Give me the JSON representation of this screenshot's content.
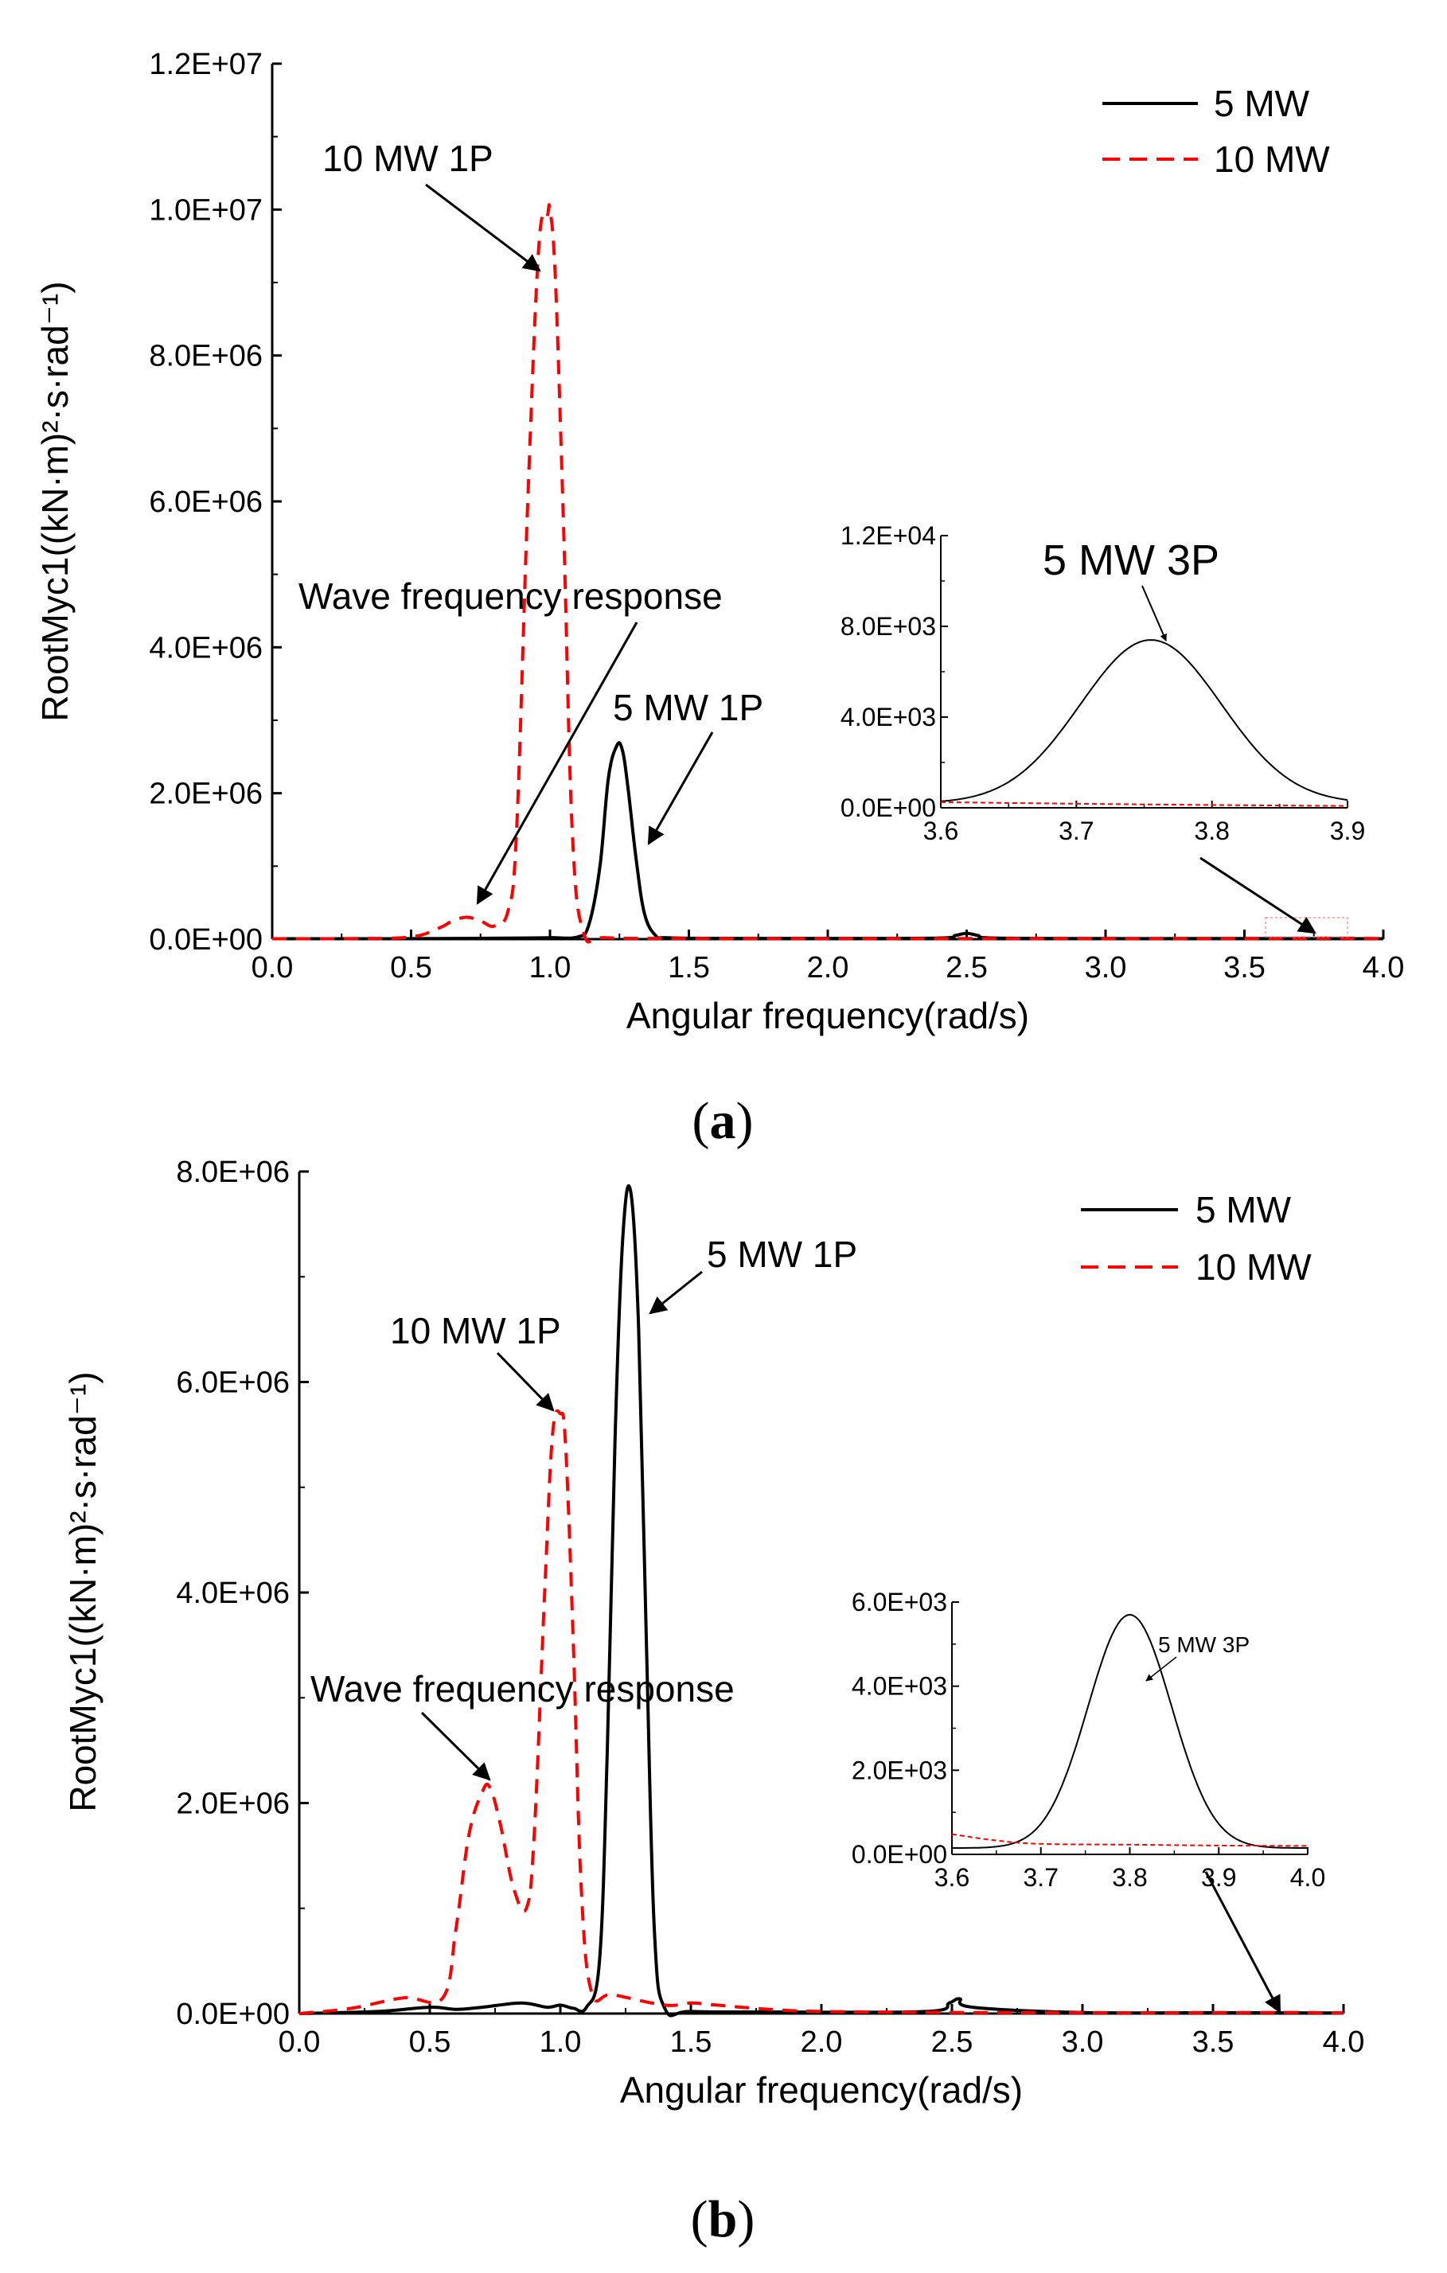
{
  "colors": {
    "mw5": "#000000",
    "mw10": "#ff0000"
  },
  "chart_data": [
    {
      "id": "a",
      "type": "line",
      "panel_label": "a",
      "xlabel": "Angular frequency(rad/s)",
      "ylabel": "RootMyc1((kN·m)²·s·rad⁻¹)",
      "xlim": [
        0,
        4
      ],
      "ylim": [
        0,
        12000000
      ],
      "x_ticks": [
        0,
        0.5,
        1,
        1.5,
        2,
        2.5,
        3,
        3.5,
        4
      ],
      "x_tick_labels": [
        "0.0",
        "0.5",
        "1.0",
        "1.5",
        "2.0",
        "2.5",
        "3.0",
        "3.5",
        "4.0"
      ],
      "y_ticks": [
        0,
        2000000,
        4000000,
        6000000,
        8000000,
        10000000,
        12000000
      ],
      "y_tick_labels": [
        "0.0E+00",
        "2.0E+06",
        "4.0E+06",
        "6.0E+06",
        "8.0E+06",
        "1.0E+07",
        "1.2E+07"
      ],
      "legend": {
        "position": "top-right",
        "entries": [
          "5 MW",
          "10 MW"
        ]
      },
      "series": [
        {
          "name": "5 MW",
          "style": "solid",
          "color": "#000000",
          "x": [
            0,
            0.3,
            0.6,
            0.9,
            1.0,
            1.1,
            1.14,
            1.18,
            1.21,
            1.24,
            1.26,
            1.28,
            1.31,
            1.34,
            1.38,
            1.42,
            1.6,
            2.0,
            2.4,
            2.46,
            2.5,
            2.54,
            2.6,
            3.0,
            3.5,
            4.0
          ],
          "y": [
            5000,
            5000,
            8000,
            15000,
            20000,
            30000,
            200000,
            1000000,
            2200000,
            2650000,
            2600000,
            2100000,
            1100000,
            350000,
            50000,
            20000,
            10000,
            10000,
            15000,
            50000,
            80000,
            50000,
            15000,
            8000,
            8000,
            5000
          ]
        },
        {
          "name": "10 MW",
          "style": "dashed",
          "color": "#ff0000",
          "x": [
            0,
            0.3,
            0.5,
            0.6,
            0.65,
            0.7,
            0.75,
            0.8,
            0.85,
            0.88,
            0.92,
            0.96,
            0.99,
            1.0,
            1.02,
            1.05,
            1.08,
            1.12,
            1.2,
            1.5,
            2.0,
            2.5,
            3.0,
            3.5,
            3.8,
            4.0
          ],
          "y": [
            5000,
            8000,
            30000,
            150000,
            250000,
            300000,
            250000,
            180000,
            400000,
            1500000,
            6000000,
            9500000,
            9900000,
            10000000,
            9000000,
            5500000,
            1500000,
            100000,
            20000,
            10000,
            8000,
            8000,
            8000,
            8000,
            12000,
            8000
          ]
        }
      ],
      "annotations": [
        "10 MW 1P",
        "Wave frequency response",
        "5 MW 1P"
      ],
      "inset": {
        "xlim": [
          3.6,
          3.9
        ],
        "ylim": [
          0,
          12000
        ],
        "x_ticks": [
          3.6,
          3.7,
          3.8,
          3.9
        ],
        "x_tick_labels": [
          "3.6",
          "3.7",
          "3.8",
          "3.9"
        ],
        "y_ticks": [
          0,
          4000,
          8000,
          12000
        ],
        "y_tick_labels": [
          "0.0E+00",
          "4.0E+03",
          "8.0E+03",
          "1.2E+04"
        ],
        "annotation": "5 MW 3P",
        "series": [
          {
            "name": "5 MW",
            "style": "solid",
            "color": "#000000",
            "kind": "gauss",
            "mu": 3.755,
            "sigma": 0.052,
            "amp": 7200,
            "base": 200
          },
          {
            "name": "10 MW",
            "style": "dashed",
            "color": "#ff0000",
            "x": [
              3.6,
              3.75,
              3.9
            ],
            "y": [
              250,
              150,
              80
            ]
          }
        ]
      }
    },
    {
      "id": "b",
      "type": "line",
      "panel_label": "b",
      "xlabel": "Angular frequency(rad/s)",
      "ylabel": "RootMyc1((kN·m)²·s·rad⁻¹)",
      "xlim": [
        0,
        4
      ],
      "ylim": [
        0,
        8000000
      ],
      "x_ticks": [
        0,
        0.5,
        1,
        1.5,
        2,
        2.5,
        3,
        3.5,
        4
      ],
      "x_tick_labels": [
        "0.0",
        "0.5",
        "1.0",
        "1.5",
        "2.0",
        "2.5",
        "3.0",
        "3.5",
        "4.0"
      ],
      "y_ticks": [
        0,
        2000000,
        4000000,
        6000000,
        8000000
      ],
      "y_tick_labels": [
        "0.0E+00",
        "2.0E+06",
        "4.0E+06",
        "6.0E+06",
        "8.0E+06"
      ],
      "legend": {
        "position": "top-right",
        "entries": [
          "5 MW",
          "10 MW"
        ]
      },
      "series": [
        {
          "name": "5 MW",
          "style": "solid",
          "color": "#000000",
          "x": [
            0,
            0.3,
            0.5,
            0.6,
            0.7,
            0.85,
            0.95,
            1.0,
            1.05,
            1.1,
            1.15,
            1.18,
            1.21,
            1.24,
            1.27,
            1.3,
            1.33,
            1.36,
            1.4,
            1.5,
            1.8,
            2.4,
            2.49,
            2.53,
            2.58,
            3.0,
            3.5,
            4.0
          ],
          "y": [
            0,
            20000,
            60000,
            40000,
            60000,
            100000,
            60000,
            80000,
            50000,
            60000,
            500000,
            2500000,
            5500000,
            7400000,
            7800000,
            6500000,
            3500000,
            800000,
            50000,
            20000,
            15000,
            20000,
            100000,
            140000,
            60000,
            10000,
            8000,
            5000
          ]
        },
        {
          "name": "10 MW",
          "style": "dashed",
          "color": "#ff0000",
          "x": [
            0,
            0.2,
            0.4,
            0.55,
            0.6,
            0.65,
            0.7,
            0.73,
            0.77,
            0.82,
            0.87,
            0.9,
            0.94,
            0.97,
            1.0,
            1.02,
            1.05,
            1.08,
            1.12,
            1.2,
            1.4,
            1.5,
            1.6,
            1.8,
            2.0,
            2.5,
            3.0,
            3.5,
            3.8,
            4.0
          ],
          "y": [
            0,
            50000,
            150000,
            150000,
            800000,
            1700000,
            2100000,
            2150000,
            1800000,
            1200000,
            1000000,
            1700000,
            4000000,
            5500000,
            5700000,
            5400000,
            3500000,
            1200000,
            200000,
            180000,
            80000,
            100000,
            80000,
            40000,
            20000,
            10000,
            8000,
            8000,
            10000,
            5000
          ]
        }
      ],
      "annotations": [
        "10 MW 1P",
        "5 MW 1P",
        "Wave frequency response"
      ],
      "inset": {
        "xlim": [
          3.6,
          4.0
        ],
        "ylim": [
          0,
          6000
        ],
        "x_ticks": [
          3.6,
          3.7,
          3.8,
          3.9,
          4.0
        ],
        "x_tick_labels": [
          "3.6",
          "3.7",
          "3.8",
          "3.9",
          "4.0"
        ],
        "y_ticks": [
          0,
          2000,
          4000,
          6000
        ],
        "y_tick_labels": [
          "0.0E+00",
          "2.0E+03",
          "4.0E+03",
          "6.0E+03"
        ],
        "annotation": "5 MW 3P",
        "series": [
          {
            "name": "5 MW",
            "style": "solid",
            "color": "#000000",
            "kind": "gauss",
            "mu": 3.8,
            "sigma": 0.047,
            "amp": 5550,
            "base": 150
          },
          {
            "name": "10 MW",
            "style": "dashed",
            "color": "#ff0000",
            "x": [
              3.6,
              3.65,
              3.7,
              3.8,
              3.9,
              4.0
            ],
            "y": [
              480,
              330,
              250,
              230,
              210,
              200
            ]
          }
        ]
      }
    }
  ]
}
